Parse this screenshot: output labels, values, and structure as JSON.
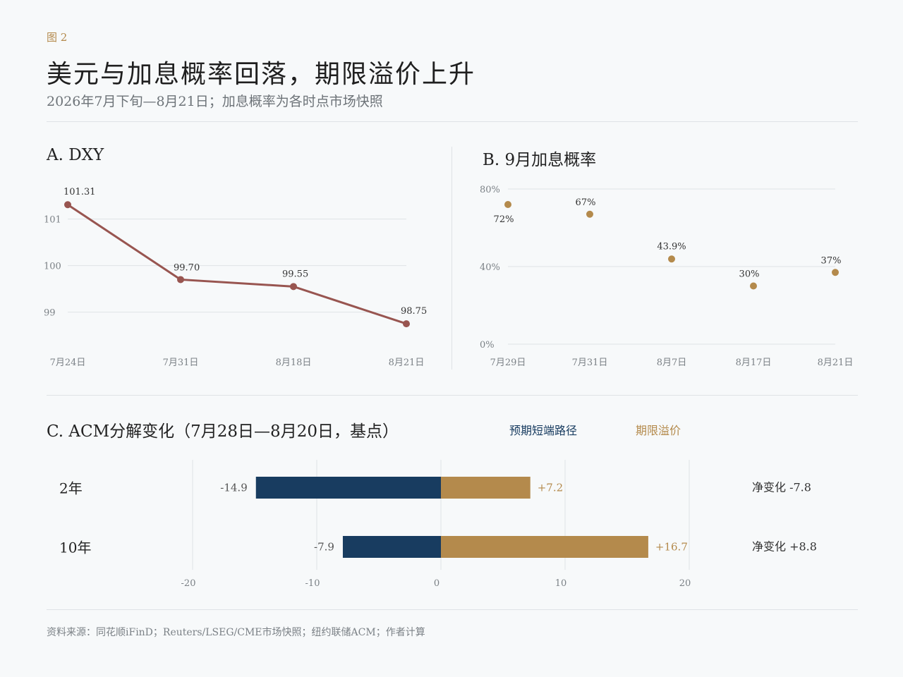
{
  "header": {
    "figure_label": "图 2",
    "title": "美元与加息概率回落，期限溢价上升",
    "subtitle": "2026年7月下旬—8月21日；加息概率为各时点市场快照"
  },
  "source": "资料来源：同花顺iFinD；Reuters/LSEG/CME市场快照；纽约联储ACM；作者计算",
  "colors": {
    "dxy_line": "#985550",
    "gold": "#b48a4c",
    "navy": "#183c60",
    "grid": "#dfe3e6",
    "axis_text": "#7b8186"
  },
  "chart_data": [
    {
      "panel": "A",
      "type": "line",
      "title": "A. DXY",
      "categories": [
        "7月24日",
        "7月31日",
        "8月18日",
        "8月21日"
      ],
      "values": [
        101.31,
        99.7,
        99.55,
        98.75
      ],
      "data_labels": [
        "101.31",
        "99.70",
        "99.55",
        "98.75"
      ],
      "yticks": [
        99,
        100,
        101
      ],
      "ytick_labels": [
        "99",
        "100",
        "101"
      ],
      "ylim": [
        98.6,
        101.45
      ],
      "grid": true
    },
    {
      "panel": "B",
      "type": "scatter",
      "title": "B. 9月加息概率",
      "categories": [
        "7月29日",
        "7月31日",
        "8月7日",
        "8月17日",
        "8月21日"
      ],
      "values": [
        72,
        67,
        43.9,
        30,
        37
      ],
      "data_labels": [
        "72%",
        "67%",
        "43.9%",
        "30%",
        "37%"
      ],
      "yticks": [
        0,
        40,
        80
      ],
      "ytick_labels": [
        "0%",
        "40%",
        "80%"
      ],
      "ylim": [
        0,
        80
      ],
      "grid": true
    },
    {
      "panel": "C",
      "type": "bar",
      "orientation": "horizontal",
      "stacked_diverging": true,
      "title": "C. ACM分解变化（7月28日—8月20日，基点）",
      "categories": [
        "2年",
        "10年"
      ],
      "series": [
        {
          "name": "预期短端路径",
          "values": [
            -14.9,
            -7.9
          ],
          "labels": [
            "-14.9",
            "-7.9"
          ]
        },
        {
          "name": "期限溢价",
          "values": [
            7.2,
            16.7
          ],
          "labels": [
            "+7.2",
            "+16.7"
          ]
        }
      ],
      "net_labels": [
        "净变化 -7.8",
        "净变化 +8.8"
      ],
      "xticks": [
        -20,
        -10,
        0,
        10,
        20
      ],
      "xtick_labels": [
        "-20",
        "-10",
        "0",
        "10",
        "20"
      ],
      "xlim": [
        -20,
        20
      ],
      "legend_position": "top"
    }
  ]
}
